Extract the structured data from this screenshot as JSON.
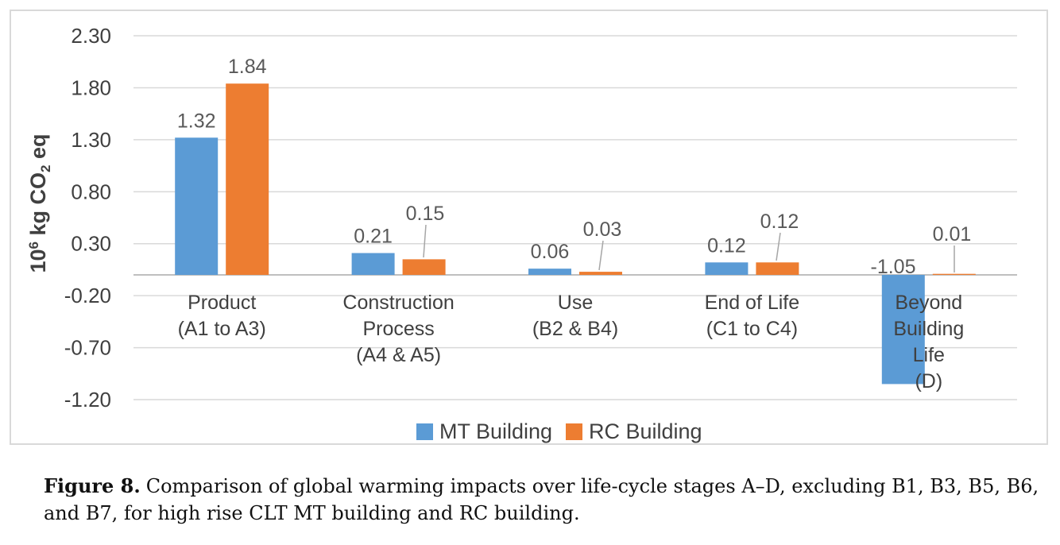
{
  "figure": {
    "caption": {
      "label": "Figure 8.",
      "line1": "Comparison of global warming impacts over life-cycle stages A–D, excluding B1, B3, B5, B6,",
      "line2": "and B7, for high rise CLT MT building and RC building."
    }
  },
  "chart_data": {
    "type": "bar",
    "title": "",
    "xlabel": "",
    "ylabel": "10⁶ kg CO₂ eq",
    "ylim": [
      -1.2,
      2.3
    ],
    "yticks": [
      2.3,
      1.8,
      1.3,
      0.8,
      0.3,
      -0.2,
      -0.7,
      -1.2
    ],
    "grid": true,
    "legend_position": "bottom",
    "categories": [
      {
        "label": "Product (A1 to A3)",
        "lines": [
          "Product",
          "(A1 to A3)"
        ]
      },
      {
        "label": "Construction Process (A4 & A5)",
        "lines": [
          "Construction",
          "Process",
          "(A4 & A5)"
        ]
      },
      {
        "label": "Use (B2 & B4)",
        "lines": [
          "Use",
          "(B2 & B4)"
        ]
      },
      {
        "label": "End of Life (C1 to C4)",
        "lines": [
          "End of Life",
          "(C1 to C4)"
        ]
      },
      {
        "label": "Beyond Building Life (D)",
        "lines": [
          "Beyond",
          "Building",
          "Life",
          "(D)"
        ]
      }
    ],
    "series": [
      {
        "name": "MT Building",
        "color": "#5B9BD5",
        "values": [
          1.32,
          0.21,
          0.06,
          0.12,
          -1.05
        ]
      },
      {
        "name": "RC Building",
        "color": "#ED7D31",
        "values": [
          1.84,
          0.15,
          0.03,
          0.12,
          0.01
        ]
      }
    ],
    "data_label_format": "0.00",
    "colors": {
      "gridline": "#D9D9D9",
      "axis_line": "#BFBFBF",
      "frame_border": "#D9D9D9",
      "tick_text": "#404040",
      "data_label_text": "#595959",
      "leader_line": "#A6A6A6"
    }
  }
}
